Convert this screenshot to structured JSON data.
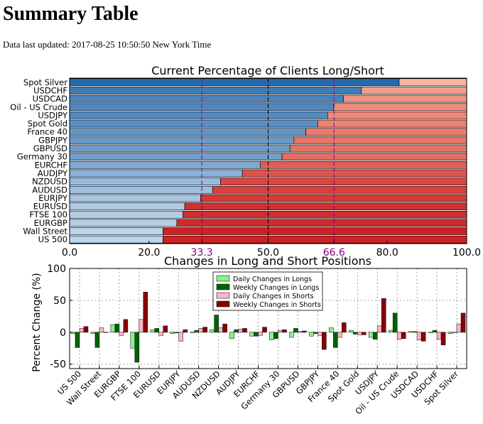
{
  "page": {
    "title": "Summary Table",
    "updated": "Data last updated: 2017-08-25 10:50:50 New York Time"
  },
  "colors": {
    "long_light": "#c6dbef",
    "long_dark": "#2166ac",
    "short_light": "#fcbba1",
    "short_dark": "#cb181d",
    "threshold_line": "#800080",
    "daily_longs": "#90ee90",
    "weekly_longs": "#006400",
    "daily_shorts": "#ffb6c1",
    "weekly_shorts": "#8b0000"
  },
  "chart_data": [
    {
      "type": "bar",
      "orientation": "horizontal-stacked",
      "title": "Current Percentage of Clients Long/Short",
      "categories": [
        "Spot Silver",
        "USDCHF",
        "USDCAD",
        "Oil - US Crude",
        "USDJPY",
        "Spot Gold",
        "France 40",
        "GBPJPY",
        "GBPUSD",
        "Germany 30",
        "EURCHF",
        "AUDJPY",
        "NZDUSD",
        "AUDUSD",
        "EURJPY",
        "EURUSD",
        "FTSE 100",
        "EURGBP",
        "Wall Street",
        "US 500"
      ],
      "long_pct": [
        83,
        73.5,
        69,
        66.5,
        65,
        62.5,
        59.5,
        56.5,
        55.5,
        53.5,
        48,
        43.5,
        38,
        36,
        33,
        29,
        28.5,
        27,
        23.5,
        23.5
      ],
      "xlim": [
        0,
        100
      ],
      "xticks": [
        "0.0",
        "20.0",
        "33.3",
        "50.0",
        "66.6",
        "80.0",
        "100.0"
      ],
      "tick_values": [
        0,
        20,
        33.3,
        50,
        66.6,
        80,
        100
      ],
      "highlight_ticks": [
        "33.3",
        "66.6"
      ],
      "reference_lines": [
        33.3,
        50,
        66.6
      ]
    },
    {
      "type": "bar",
      "title": "Changes in Long and Short Positions",
      "ylabel": "Percent Change (%)",
      "ylim": [
        -57,
        100
      ],
      "yticks": [
        -50,
        0,
        50,
        100
      ],
      "grid": true,
      "legend_position": "top-center",
      "categories": [
        "US 500",
        "Wall Street",
        "EURGBP",
        "FTSE 100",
        "EURUSD",
        "EURJPY",
        "AUDUSD",
        "NZDUSD",
        "AUDJPY",
        "EURCHF",
        "Germany 30",
        "GBPUSD",
        "GBPJPY",
        "France 40",
        "Spot Gold",
        "USDJPY",
        "Oil - US Crude",
        "USDCAD",
        "USDCHF",
        "Spot Silver"
      ],
      "series": [
        {
          "name": "Daily Changes in Longs",
          "values": [
            -2,
            -2,
            12,
            -25,
            4,
            -2,
            0,
            4,
            -10,
            -6,
            -12,
            -8,
            -6,
            7,
            3,
            -8,
            3,
            1,
            0,
            -2
          ]
        },
        {
          "name": "Weekly Changes in Longs",
          "values": [
            -24,
            -24,
            13,
            -47,
            6,
            -1,
            3,
            27,
            4,
            -6,
            -10,
            6,
            -2,
            -24,
            -3,
            -11,
            30,
            1,
            3,
            0
          ]
        },
        {
          "name": "Daily Changes in Shorts",
          "values": [
            6,
            7,
            -5,
            20,
            -5,
            -14,
            6,
            7,
            5,
            -5,
            3,
            1,
            -5,
            -8,
            -4,
            10,
            -11,
            -12,
            -11,
            13
          ]
        },
        {
          "name": "Weekly Changes in Shorts",
          "values": [
            9,
            0,
            20,
            63,
            10,
            4,
            8,
            13,
            6,
            8,
            4,
            2,
            -27,
            15,
            -4,
            53,
            -10,
            -14,
            -20,
            30
          ]
        }
      ]
    }
  ]
}
